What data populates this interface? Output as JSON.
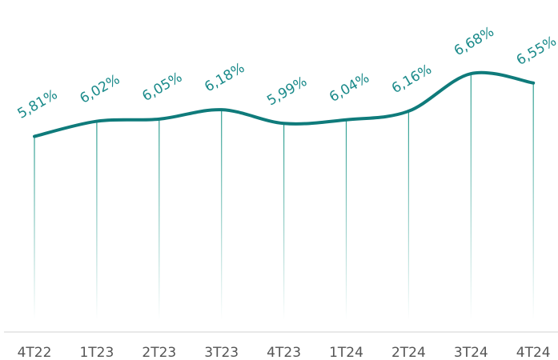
{
  "chart_data": {
    "type": "line",
    "categories": [
      "4T22",
      "1T23",
      "2T23",
      "3T23",
      "4T23",
      "1T24",
      "2T24",
      "3T24",
      "4T24"
    ],
    "series": [
      {
        "color": "#0f7b7b",
        "values": [
          5.81,
          6.02,
          6.05,
          6.18,
          5.99,
          6.04,
          6.16,
          6.68,
          6.55
        ],
        "value_labels": [
          "5,81%",
          "6,02%",
          "6,05%",
          "6,18%",
          "5,99%",
          "6,04%",
          "6,16%",
          "6,68%",
          "6,55%"
        ]
      }
    ],
    "ylim": [
      3.1,
      7.7
    ]
  }
}
